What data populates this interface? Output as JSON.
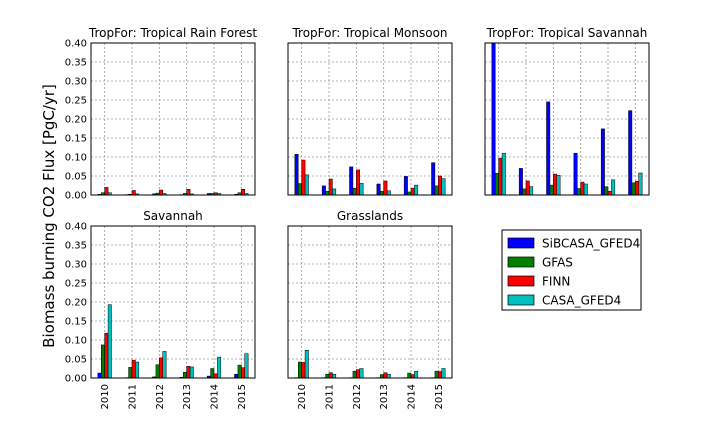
{
  "chart_data": {
    "type": "bar",
    "ylabel": "Biomass burning CO2 Flux [PgC/yr]",
    "ylim": [
      0,
      0.4
    ],
    "yticks": [
      "0.00",
      "0.05",
      "0.10",
      "0.15",
      "0.20",
      "0.25",
      "0.30",
      "0.35",
      "0.40"
    ],
    "categories": [
      "2010",
      "2011",
      "2012",
      "2013",
      "2014",
      "2015"
    ],
    "grid": true,
    "legend_position": "right",
    "legend": [
      {
        "name": "SiBCASA_GFED4",
        "color": "#0000ff"
      },
      {
        "name": "GFAS",
        "color": "#008000"
      },
      {
        "name": "FINN",
        "color": "#ff0000"
      },
      {
        "name": "CASA_GFED4",
        "color": "#00bfbf"
      }
    ],
    "panels": [
      {
        "title": "TropFor: Tropical Rain Forest",
        "series": [
          {
            "name": "SiBCASA_GFED4",
            "values": [
              0.002,
              0.001,
              0.003,
              0.001,
              0.004,
              0.002
            ]
          },
          {
            "name": "GFAS",
            "values": [
              0.006,
              0.002,
              0.005,
              0.004,
              0.004,
              0.006
            ]
          },
          {
            "name": "FINN",
            "values": [
              0.02,
              0.012,
              0.013,
              0.015,
              0.006,
              0.015
            ]
          },
          {
            "name": "CASA_GFED4",
            "values": [
              0.006,
              0.003,
              0.004,
              0.003,
              0.004,
              0.004
            ]
          }
        ]
      },
      {
        "title": "TropFor: Tropical Monsoon",
        "series": [
          {
            "name": "SiBCASA_GFED4",
            "values": [
              0.107,
              0.024,
              0.074,
              0.029,
              0.049,
              0.085
            ]
          },
          {
            "name": "GFAS",
            "values": [
              0.03,
              0.01,
              0.018,
              0.01,
              0.008,
              0.024
            ]
          },
          {
            "name": "FINN",
            "values": [
              0.092,
              0.042,
              0.066,
              0.037,
              0.018,
              0.05
            ]
          },
          {
            "name": "CASA_GFED4",
            "values": [
              0.053,
              0.016,
              0.031,
              0.011,
              0.026,
              0.043
            ]
          }
        ]
      },
      {
        "title": "TropFor: Tropical Savannah",
        "series": [
          {
            "name": "SiBCASA_GFED4",
            "values": [
              0.4,
              0.07,
              0.245,
              0.11,
              0.174,
              0.222
            ]
          },
          {
            "name": "GFAS",
            "values": [
              0.057,
              0.016,
              0.026,
              0.017,
              0.022,
              0.032
            ]
          },
          {
            "name": "FINN",
            "values": [
              0.097,
              0.037,
              0.055,
              0.034,
              0.01,
              0.036
            ]
          },
          {
            "name": "CASA_GFED4",
            "values": [
              0.11,
              0.022,
              0.052,
              0.029,
              0.04,
              0.058
            ]
          }
        ]
      },
      {
        "title": "Savannah",
        "series": [
          {
            "name": "SiBCASA_GFED4",
            "values": [
              0.013,
              0.001,
              0.003,
              0.002,
              0.005,
              0.01
            ]
          },
          {
            "name": "GFAS",
            "values": [
              0.087,
              0.028,
              0.035,
              0.015,
              0.025,
              0.034
            ]
          },
          {
            "name": "FINN",
            "values": [
              0.118,
              0.047,
              0.053,
              0.031,
              0.011,
              0.027
            ]
          },
          {
            "name": "CASA_GFED4",
            "values": [
              0.193,
              0.042,
              0.07,
              0.029,
              0.055,
              0.064
            ]
          }
        ]
      },
      {
        "title": "Grasslands",
        "series": [
          {
            "name": "SiBCASA_GFED4",
            "values": [
              0.001,
              0.001,
              0.001,
              0.001,
              0.001,
              0.001
            ]
          },
          {
            "name": "GFAS",
            "values": [
              0.042,
              0.01,
              0.018,
              0.009,
              0.013,
              0.018
            ]
          },
          {
            "name": "FINN",
            "values": [
              0.041,
              0.014,
              0.022,
              0.014,
              0.009,
              0.017
            ]
          },
          {
            "name": "CASA_GFED4",
            "values": [
              0.073,
              0.01,
              0.025,
              0.01,
              0.018,
              0.025
            ]
          }
        ]
      }
    ]
  }
}
